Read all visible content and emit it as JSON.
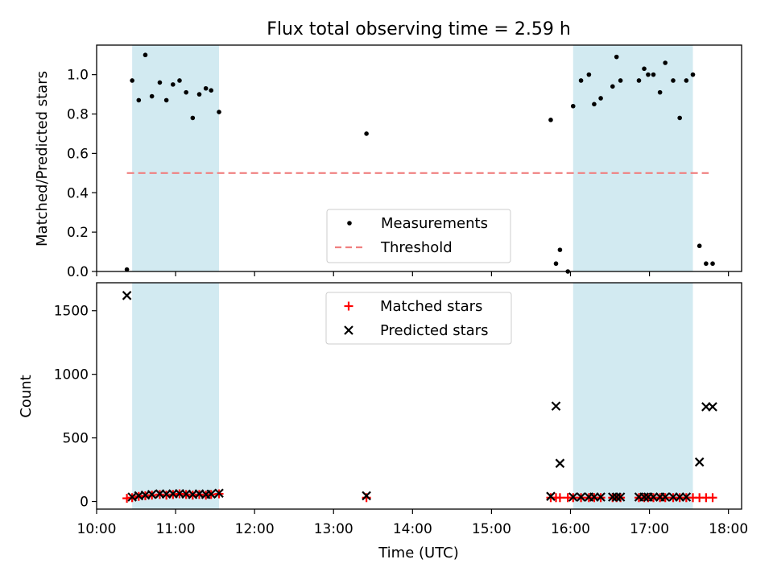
{
  "chart_data": {
    "type": "scatter",
    "title": "Flux total observing time = 2.59 h",
    "xlabel": "Time (UTC)",
    "xlim": [
      "10:00",
      "18:10"
    ],
    "x_ticks": [
      "10:00",
      "11:00",
      "12:00",
      "13:00",
      "14:00",
      "15:00",
      "16:00",
      "17:00",
      "18:00"
    ],
    "shaded_intervals": [
      [
        "10:27",
        "11:33"
      ],
      [
        "16:02",
        "17:33"
      ]
    ],
    "shade_color": "#add8e6",
    "panels": [
      {
        "name": "ratio",
        "ylabel": "Matched/Predicted stars",
        "ylim": [
          0,
          1.15
        ],
        "y_ticks": [
          "0.0",
          "0.2",
          "0.4",
          "0.6",
          "0.8",
          "1.0"
        ],
        "legend": "bottom-center",
        "threshold": {
          "name": "Threshold",
          "value": 0.5,
          "x_start": "10:23",
          "x_end": "17:45",
          "color": "#f08080"
        },
        "series": [
          {
            "name": "Measurements",
            "marker": "dot",
            "color": "#000000",
            "points": [
              [
                "10:23",
                0.01
              ],
              [
                "10:27",
                0.97
              ],
              [
                "10:32",
                0.87
              ],
              [
                "10:37",
                1.1
              ],
              [
                "10:42",
                0.89
              ],
              [
                "10:48",
                0.96
              ],
              [
                "10:53",
                0.87
              ],
              [
                "10:58",
                0.95
              ],
              [
                "11:03",
                0.97
              ],
              [
                "11:08",
                0.91
              ],
              [
                "11:13",
                0.78
              ],
              [
                "11:18",
                0.9
              ],
              [
                "11:23",
                0.93
              ],
              [
                "11:27",
                0.92
              ],
              [
                "11:33",
                0.81
              ],
              [
                "13:25",
                0.7
              ],
              [
                "15:45",
                0.77
              ],
              [
                "15:49",
                0.04
              ],
              [
                "15:52",
                0.11
              ],
              [
                "15:58",
                0.0
              ],
              [
                "16:02",
                0.84
              ],
              [
                "16:08",
                0.97
              ],
              [
                "16:14",
                1.0
              ],
              [
                "16:18",
                0.85
              ],
              [
                "16:23",
                0.88
              ],
              [
                "16:32",
                0.94
              ],
              [
                "16:35",
                1.09
              ],
              [
                "16:38",
                0.97
              ],
              [
                "16:52",
                0.97
              ],
              [
                "16:56",
                1.03
              ],
              [
                "16:59",
                1.0
              ],
              [
                "17:03",
                1.0
              ],
              [
                "17:08",
                0.91
              ],
              [
                "17:12",
                1.06
              ],
              [
                "17:18",
                0.97
              ],
              [
                "17:23",
                0.78
              ],
              [
                "17:28",
                0.97
              ],
              [
                "17:33",
                1.0
              ],
              [
                "17:38",
                0.13
              ],
              [
                "17:43",
                0.04
              ],
              [
                "17:48",
                0.04
              ]
            ]
          }
        ]
      },
      {
        "name": "counts",
        "ylabel": "Count",
        "ylim": [
          -60,
          1720
        ],
        "y_ticks": [
          "0",
          "500",
          "1000",
          "1500"
        ],
        "legend": "top-center",
        "series": [
          {
            "name": "Matched stars",
            "marker": "plus",
            "color": "#ff0000",
            "points": [
              [
                "10:23",
                25
              ],
              [
                "10:27",
                30
              ],
              [
                "10:32",
                40
              ],
              [
                "10:37",
                45
              ],
              [
                "10:42",
                50
              ],
              [
                "10:48",
                55
              ],
              [
                "10:53",
                50
              ],
              [
                "10:58",
                55
              ],
              [
                "11:03",
                60
              ],
              [
                "11:08",
                55
              ],
              [
                "11:13",
                50
              ],
              [
                "11:18",
                55
              ],
              [
                "11:23",
                50
              ],
              [
                "11:27",
                55
              ],
              [
                "11:33",
                60
              ],
              [
                "13:25",
                30
              ],
              [
                "15:45",
                30
              ],
              [
                "15:49",
                30
              ],
              [
                "15:52",
                30
              ],
              [
                "15:58",
                30
              ],
              [
                "16:02",
                30
              ],
              [
                "16:08",
                30
              ],
              [
                "16:14",
                30
              ],
              [
                "16:18",
                30
              ],
              [
                "16:23",
                30
              ],
              [
                "16:32",
                30
              ],
              [
                "16:35",
                30
              ],
              [
                "16:38",
                30
              ],
              [
                "16:52",
                30
              ],
              [
                "16:56",
                30
              ],
              [
                "16:59",
                30
              ],
              [
                "17:03",
                30
              ],
              [
                "17:08",
                30
              ],
              [
                "17:12",
                30
              ],
              [
                "17:18",
                30
              ],
              [
                "17:23",
                30
              ],
              [
                "17:28",
                30
              ],
              [
                "17:33",
                30
              ],
              [
                "17:38",
                30
              ],
              [
                "17:43",
                30
              ],
              [
                "17:48",
                30
              ]
            ]
          },
          {
            "name": "Predicted stars",
            "marker": "x",
            "color": "#000000",
            "points": [
              [
                "10:23",
                1620
              ],
              [
                "10:27",
                35
              ],
              [
                "10:32",
                45
              ],
              [
                "10:37",
                50
              ],
              [
                "10:42",
                55
              ],
              [
                "10:48",
                60
              ],
              [
                "10:53",
                58
              ],
              [
                "10:58",
                60
              ],
              [
                "11:03",
                62
              ],
              [
                "11:08",
                58
              ],
              [
                "11:13",
                55
              ],
              [
                "11:18",
                60
              ],
              [
                "11:23",
                55
              ],
              [
                "11:27",
                58
              ],
              [
                "11:33",
                65
              ],
              [
                "13:25",
                45
              ],
              [
                "15:45",
                40
              ],
              [
                "15:49",
                750
              ],
              [
                "15:52",
                300
              ],
              [
                "16:02",
                35
              ],
              [
                "16:08",
                35
              ],
              [
                "16:14",
                35
              ],
              [
                "16:18",
                35
              ],
              [
                "16:23",
                35
              ],
              [
                "16:32",
                35
              ],
              [
                "16:35",
                35
              ],
              [
                "16:38",
                35
              ],
              [
                "16:52",
                35
              ],
              [
                "16:56",
                35
              ],
              [
                "16:59",
                35
              ],
              [
                "17:03",
                35
              ],
              [
                "17:08",
                35
              ],
              [
                "17:12",
                35
              ],
              [
                "17:18",
                35
              ],
              [
                "17:23",
                35
              ],
              [
                "17:28",
                35
              ],
              [
                "17:38",
                310
              ],
              [
                "17:43",
                745
              ],
              [
                "17:48",
                745
              ]
            ]
          }
        ]
      }
    ]
  }
}
